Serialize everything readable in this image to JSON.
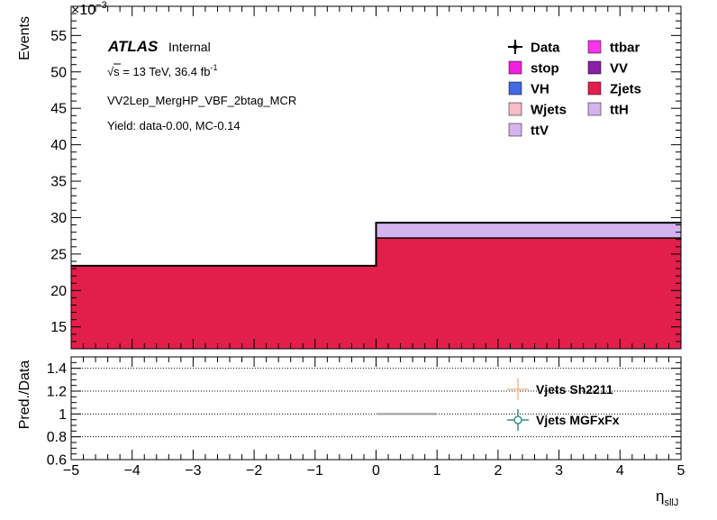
{
  "chart_data": [
    {
      "type": "bar",
      "ylabel": "Events",
      "multiplier_base": "×10",
      "multiplier_exp": "−3",
      "xlim": [
        -5,
        5
      ],
      "ylim": [
        12,
        59
      ],
      "y_ticks": [
        15,
        20,
        25,
        30,
        35,
        40,
        45,
        50,
        55
      ],
      "stacked_bins": [
        {
          "x_low": -5,
          "x_high": 0,
          "Zjets": 23.4,
          "ttH": 0
        },
        {
          "x_low": 0,
          "x_high": 5,
          "Zjets": 27.2,
          "ttH": 2.1
        }
      ],
      "totals": [
        23.4,
        29.3
      ],
      "annotations": {
        "atlas": "ATLAS",
        "internal": "Internal",
        "energy_sqrt": "√s",
        "energy_rest": " = 13 TeV, 36.4 fb",
        "energy_exp": "-1",
        "region": "VV2Lep_MergHP_VBF_2btag_MCR",
        "yield": "Yield: data-0.00, MC-0.14"
      },
      "legend_position": "top-right",
      "legend": [
        {
          "label": "Data",
          "color": "#000000",
          "marker": "cross"
        },
        {
          "label": "ttbar",
          "color": "#ff33ee",
          "marker": "box"
        },
        {
          "label": "stop",
          "color": "#ee22dd",
          "marker": "box"
        },
        {
          "label": "VV",
          "color": "#8a1fa8",
          "marker": "box"
        },
        {
          "label": "VH",
          "color": "#4169e1",
          "marker": "box"
        },
        {
          "label": "Zjets",
          "color": "#e21f4a",
          "marker": "box"
        },
        {
          "label": "Wjets",
          "color": "#f7bcc6",
          "marker": "box"
        },
        {
          "label": "ttH",
          "color": "#d5b3f0",
          "marker": "box"
        },
        {
          "label": "ttV",
          "color": "#d5b3f0",
          "marker": "box"
        }
      ]
    },
    {
      "type": "line",
      "ylabel": "Pred./Data",
      "xlabel_main": "η",
      "xlabel_sub": "sllJ",
      "xlim": [
        -5,
        5
      ],
      "ylim": [
        0.6,
        1.5
      ],
      "x_ticks": [
        -5,
        -4,
        -3,
        -2,
        -1,
        0,
        1,
        2,
        3,
        4,
        5
      ],
      "x_tick_labels": [
        "−5",
        "−4",
        "−3",
        "−2",
        "−1",
        "0",
        "1",
        "2",
        "3",
        "4",
        "5"
      ],
      "y_ticks": [
        0.6,
        0.8,
        1,
        1.2,
        1.4
      ],
      "y_tick_labels": [
        "0.6",
        "0.8",
        "1",
        "1.2",
        "1.4"
      ],
      "reference_lines": [
        0.8,
        1.0,
        1.2,
        1.4
      ],
      "series": [
        {
          "name": "Vjets Sh2211",
          "color": "#f5b98a"
        },
        {
          "name": "Vjets MGFxFx",
          "color": "#3d8c8c",
          "points": [
            {
              "x_low": 0,
              "x_high": 1,
              "y": 1.0
            }
          ]
        }
      ]
    }
  ]
}
